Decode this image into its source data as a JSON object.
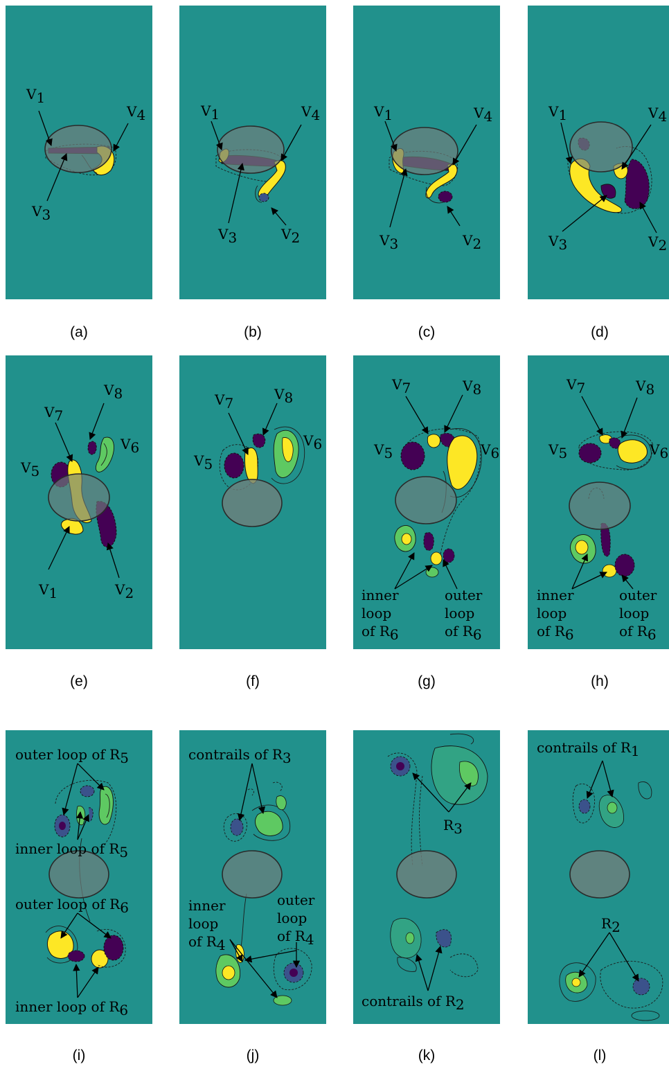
{
  "colors": {
    "background": "#21918c",
    "positive_strong": "#fde725",
    "positive_mid": "#5ec962",
    "negative_strong": "#440154",
    "negative_mid": "#3b528b",
    "body": "#6f7f7c"
  },
  "figure": {
    "panels": [
      {
        "caption": "(a)",
        "labels": [
          {
            "base": "V",
            "sub": "1"
          },
          {
            "base": "V",
            "sub": "4"
          },
          {
            "base": "V",
            "sub": "3"
          }
        ]
      },
      {
        "caption": "(b)",
        "labels": [
          {
            "base": "V",
            "sub": "1"
          },
          {
            "base": "V",
            "sub": "4"
          },
          {
            "base": "V",
            "sub": "3"
          },
          {
            "base": "V",
            "sub": "2"
          }
        ]
      },
      {
        "caption": "(c)",
        "labels": [
          {
            "base": "V",
            "sub": "1"
          },
          {
            "base": "V",
            "sub": "4"
          },
          {
            "base": "V",
            "sub": "3"
          },
          {
            "base": "V",
            "sub": "2"
          }
        ]
      },
      {
        "caption": "(d)",
        "labels": [
          {
            "base": "V",
            "sub": "1"
          },
          {
            "base": "V",
            "sub": "4"
          },
          {
            "base": "V",
            "sub": "3"
          },
          {
            "base": "V",
            "sub": "2"
          }
        ]
      },
      {
        "caption": "(e)",
        "labels": [
          {
            "base": "V",
            "sub": "8"
          },
          {
            "base": "V",
            "sub": "7"
          },
          {
            "base": "V",
            "sub": "6"
          },
          {
            "base": "V",
            "sub": "5"
          },
          {
            "base": "V",
            "sub": "1"
          },
          {
            "base": "V",
            "sub": "2"
          }
        ]
      },
      {
        "caption": "(f)",
        "labels": [
          {
            "base": "V",
            "sub": "7"
          },
          {
            "base": "V",
            "sub": "8"
          },
          {
            "base": "V",
            "sub": "6"
          },
          {
            "base": "V",
            "sub": "5"
          }
        ]
      },
      {
        "caption": "(g)",
        "labels": [
          {
            "base": "V",
            "sub": "7"
          },
          {
            "base": "V",
            "sub": "8"
          },
          {
            "base": "V",
            "sub": "5"
          },
          {
            "base": "V",
            "sub": "6"
          }
        ],
        "text": [
          "inner",
          "loop",
          "of R",
          "outer",
          "loop",
          "of R"
        ],
        "subs": [
          "6",
          "6"
        ]
      },
      {
        "caption": "(h)",
        "labels": [
          {
            "base": "V",
            "sub": "7"
          },
          {
            "base": "V",
            "sub": "8"
          },
          {
            "base": "V",
            "sub": "5"
          },
          {
            "base": "V",
            "sub": "6"
          }
        ],
        "text": [
          "inner",
          "loop",
          "of R",
          "outer",
          "loop",
          "of R"
        ],
        "subs": [
          "6",
          "6"
        ]
      },
      {
        "caption": "(i)",
        "text": [
          "outer loop of R",
          "inner loop of R",
          "outer loop of R",
          "inner loop of R"
        ],
        "subs": [
          "5",
          "5",
          "6",
          "6"
        ]
      },
      {
        "caption": "(j)",
        "text": [
          "contrails of R",
          "inner",
          "loop",
          "of R",
          "outer",
          "loop",
          "of R"
        ],
        "subs": [
          "3",
          "4",
          "4"
        ]
      },
      {
        "caption": "(k)",
        "text": [
          "R",
          "contrails of R"
        ],
        "subs": [
          "3",
          "2"
        ]
      },
      {
        "caption": "(l)",
        "text": [
          "contrails of R",
          "R"
        ],
        "subs": [
          "1",
          "2"
        ]
      }
    ]
  }
}
